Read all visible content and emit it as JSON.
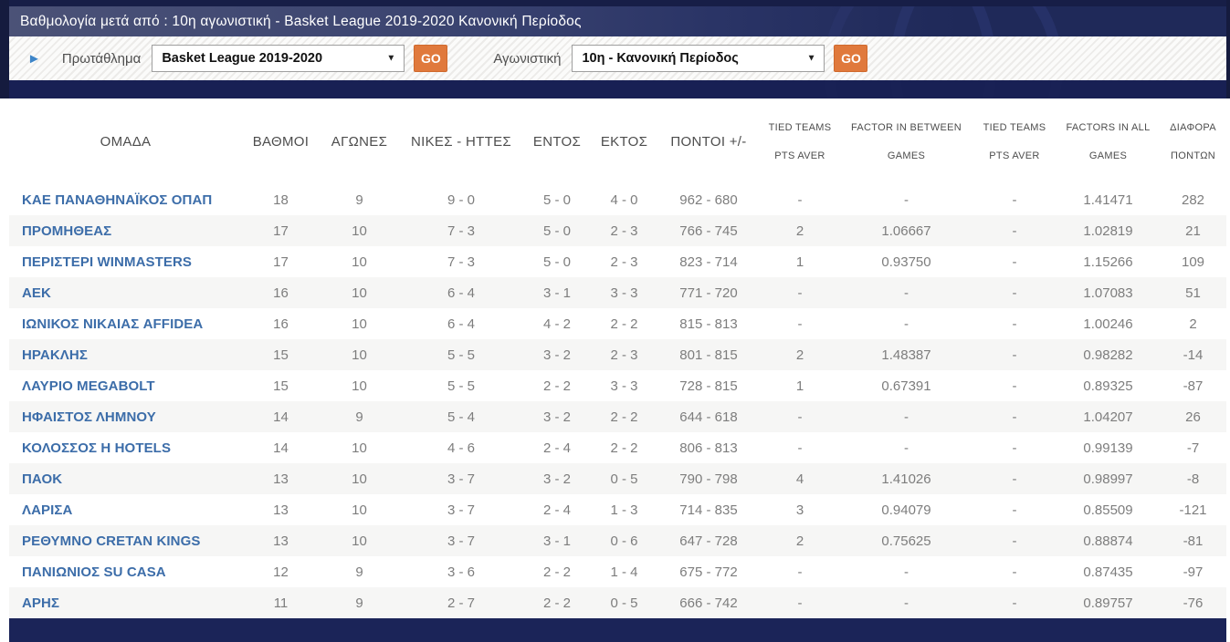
{
  "header": {
    "title": "Βαθμολογία μετά από : 10η αγωνιστική - Basket League 2019-2020 Κανονική Περίοδος"
  },
  "filters": {
    "league_label": "Πρωτάθλημα",
    "league_value": "Basket League 2019-2020",
    "league_go_label": "GO",
    "round_label": "Αγωνιστική",
    "round_value": "10η - Κανονική Περίοδος",
    "round_go_label": "GO",
    "dropdown_arrow": "▼",
    "play_icon": "►"
  },
  "colors": {
    "navy": "#1f2959",
    "separator_navy": "#1b2458",
    "accent_orange": "#e0793c",
    "team_blue": "#3c6da9",
    "data_gray": "#7d7d7d"
  },
  "table": {
    "columns": [
      {
        "id": "team",
        "label": "ΟΜΑΔΑ"
      },
      {
        "id": "points",
        "label": "ΒΑΘΜΟΙ"
      },
      {
        "id": "games",
        "label": "ΑΓΩΝΕΣ"
      },
      {
        "id": "record",
        "label": "ΝΙΚΕΣ - ΗΤΤΕΣ"
      },
      {
        "id": "home",
        "label": "ΕΝΤΟΣ"
      },
      {
        "id": "away",
        "label": "ΕΚΤΟΣ"
      },
      {
        "id": "score",
        "label": "ΠΟΝΤΟΙ +/-"
      },
      {
        "id": "tied_pts_aver_1",
        "line1": "TIED TEAMS",
        "line2": "PTS AVER"
      },
      {
        "id": "factor_between",
        "line1": "FACTOR IN BETWEEN",
        "line2": "GAMES"
      },
      {
        "id": "tied_pts_aver_2",
        "line1": "TIED TEAMS",
        "line2": "PTS AVER"
      },
      {
        "id": "factor_all",
        "line1": "FACTORS IN ALL",
        "line2": "GAMES"
      },
      {
        "id": "diff",
        "line1": "ΔΙΑΦΟΡΑ",
        "line2": "ΠΟΝΤΩΝ"
      }
    ],
    "rows": [
      {
        "team": "ΚΑΕ ΠΑΝΑΘΗΝΑΪΚΟΣ ΟΠΑΠ",
        "points": "18",
        "games": "9",
        "record": "9 - 0",
        "home": "5 - 0",
        "away": "4 - 0",
        "score": "962 - 680",
        "tied1": "-",
        "factor_between": "-",
        "tied2": "-",
        "factor_all": "1.41471",
        "diff": "282"
      },
      {
        "team": "ΠΡΟΜΗΘΕΑΣ",
        "points": "17",
        "games": "10",
        "record": "7 - 3",
        "home": "5 - 0",
        "away": "2 - 3",
        "score": "766 - 745",
        "tied1": "2",
        "factor_between": "1.06667",
        "tied2": "-",
        "factor_all": "1.02819",
        "diff": "21"
      },
      {
        "team": "ΠΕΡΙΣΤΕΡΙ WINMASTERS",
        "points": "17",
        "games": "10",
        "record": "7 - 3",
        "home": "5 - 0",
        "away": "2 - 3",
        "score": "823 - 714",
        "tied1": "1",
        "factor_between": "0.93750",
        "tied2": "-",
        "factor_all": "1.15266",
        "diff": "109"
      },
      {
        "team": "ΑΕΚ",
        "points": "16",
        "games": "10",
        "record": "6 - 4",
        "home": "3 - 1",
        "away": "3 - 3",
        "score": "771 - 720",
        "tied1": "-",
        "factor_between": "-",
        "tied2": "-",
        "factor_all": "1.07083",
        "diff": "51"
      },
      {
        "team": "ΙΩΝΙΚΟΣ ΝΙΚΑΙΑΣ AFFIDEA",
        "points": "16",
        "games": "10",
        "record": "6 - 4",
        "home": "4 - 2",
        "away": "2 - 2",
        "score": "815 - 813",
        "tied1": "-",
        "factor_between": "-",
        "tied2": "-",
        "factor_all": "1.00246",
        "diff": "2"
      },
      {
        "team": "ΗΡΑΚΛΗΣ",
        "points": "15",
        "games": "10",
        "record": "5 - 5",
        "home": "3 - 2",
        "away": "2 - 3",
        "score": "801 - 815",
        "tied1": "2",
        "factor_between": "1.48387",
        "tied2": "-",
        "factor_all": "0.98282",
        "diff": "-14"
      },
      {
        "team": "ΛΑΥΡΙΟ MEGABOLT",
        "points": "15",
        "games": "10",
        "record": "5 - 5",
        "home": "2 - 2",
        "away": "3 - 3",
        "score": "728 - 815",
        "tied1": "1",
        "factor_between": "0.67391",
        "tied2": "-",
        "factor_all": "0.89325",
        "diff": "-87"
      },
      {
        "team": "ΗΦΑΙΣΤΟΣ ΛΗΜΝΟΥ",
        "points": "14",
        "games": "9",
        "record": "5 - 4",
        "home": "3 - 2",
        "away": "2 - 2",
        "score": "644 - 618",
        "tied1": "-",
        "factor_between": "-",
        "tied2": "-",
        "factor_all": "1.04207",
        "diff": "26"
      },
      {
        "team": "ΚΟΛΟΣΣΟΣ Η HOTELS",
        "points": "14",
        "games": "10",
        "record": "4 - 6",
        "home": "2 - 4",
        "away": "2 - 2",
        "score": "806 - 813",
        "tied1": "-",
        "factor_between": "-",
        "tied2": "-",
        "factor_all": "0.99139",
        "diff": "-7"
      },
      {
        "team": "ΠΑΟΚ",
        "points": "13",
        "games": "10",
        "record": "3 - 7",
        "home": "3 - 2",
        "away": "0 - 5",
        "score": "790 - 798",
        "tied1": "4",
        "factor_between": "1.41026",
        "tied2": "-",
        "factor_all": "0.98997",
        "diff": "-8"
      },
      {
        "team": "ΛΑΡΙΣΑ",
        "points": "13",
        "games": "10",
        "record": "3 - 7",
        "home": "2 - 4",
        "away": "1 - 3",
        "score": "714 - 835",
        "tied1": "3",
        "factor_between": "0.94079",
        "tied2": "-",
        "factor_all": "0.85509",
        "diff": "-121"
      },
      {
        "team": "ΡΕΘΥΜΝΟ CRETAN KINGS",
        "points": "13",
        "games": "10",
        "record": "3 - 7",
        "home": "3 - 1",
        "away": "0 - 6",
        "score": "647 - 728",
        "tied1": "2",
        "factor_between": "0.75625",
        "tied2": "-",
        "factor_all": "0.88874",
        "diff": "-81"
      },
      {
        "team": "ΠΑΝΙΩΝΙΟΣ SU CASA",
        "points": "12",
        "games": "9",
        "record": "3 - 6",
        "home": "2 - 2",
        "away": "1 - 4",
        "score": "675 - 772",
        "tied1": "-",
        "factor_between": "-",
        "tied2": "-",
        "factor_all": "0.87435",
        "diff": "-97"
      },
      {
        "team": "ΑΡΗΣ",
        "points": "11",
        "games": "9",
        "record": "2 - 7",
        "home": "2 - 2",
        "away": "0 - 5",
        "score": "666 - 742",
        "tied1": "-",
        "factor_between": "-",
        "tied2": "-",
        "factor_all": "0.89757",
        "diff": "-76"
      }
    ]
  }
}
